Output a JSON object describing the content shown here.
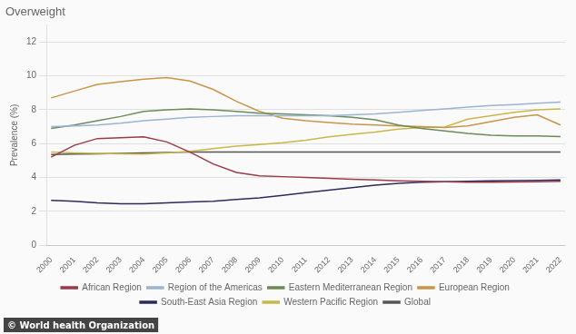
{
  "chart_data": {
    "type": "line",
    "title": "Overweight",
    "y_label": "Prevalence (%)",
    "x": [
      2000,
      2001,
      2002,
      2003,
      2004,
      2005,
      2006,
      2007,
      2008,
      2009,
      2010,
      2011,
      2012,
      2013,
      2014,
      2015,
      2016,
      2017,
      2018,
      2019,
      2020,
      2021,
      2022
    ],
    "series": [
      {
        "name": "African Region",
        "color": "#9B3A4A",
        "values": [
          5.2,
          5.9,
          6.3,
          6.35,
          6.4,
          6.1,
          5.5,
          4.8,
          4.3,
          4.1,
          4.05,
          4.0,
          3.95,
          3.9,
          3.85,
          3.8,
          3.78,
          3.75,
          3.72,
          3.72,
          3.73,
          3.75,
          3.78
        ]
      },
      {
        "name": "Region of the Americas",
        "color": "#9BB5D0",
        "values": [
          7.0,
          7.05,
          7.1,
          7.2,
          7.35,
          7.45,
          7.55,
          7.6,
          7.65,
          7.65,
          7.65,
          7.65,
          7.65,
          7.7,
          7.75,
          7.85,
          7.95,
          8.05,
          8.15,
          8.25,
          8.3,
          8.38,
          8.45
        ]
      },
      {
        "name": "Eastern Mediterranean Region",
        "color": "#6B8B5A",
        "values": [
          6.9,
          7.1,
          7.35,
          7.6,
          7.9,
          8.0,
          8.05,
          8.0,
          7.9,
          7.8,
          7.75,
          7.7,
          7.65,
          7.55,
          7.4,
          7.1,
          6.9,
          6.75,
          6.6,
          6.5,
          6.45,
          6.45,
          6.42
        ]
      },
      {
        "name": "European Region",
        "color": "#C8954A",
        "values": [
          8.7,
          9.1,
          9.5,
          9.65,
          9.8,
          9.9,
          9.7,
          9.2,
          8.5,
          7.9,
          7.5,
          7.35,
          7.25,
          7.15,
          7.1,
          7.05,
          7.0,
          6.95,
          7.05,
          7.3,
          7.55,
          7.7,
          7.1
        ]
      },
      {
        "name": "South-East Asia Region",
        "color": "#2B2B5E",
        "values": [
          2.65,
          2.6,
          2.5,
          2.45,
          2.45,
          2.5,
          2.55,
          2.6,
          2.7,
          2.8,
          2.95,
          3.1,
          3.25,
          3.4,
          3.55,
          3.65,
          3.72,
          3.75,
          3.78,
          3.8,
          3.82,
          3.83,
          3.85
        ]
      },
      {
        "name": "Western Pacific Region",
        "color": "#C8B84A",
        "values": [
          5.5,
          5.45,
          5.42,
          5.4,
          5.38,
          5.45,
          5.55,
          5.7,
          5.85,
          5.95,
          6.05,
          6.2,
          6.4,
          6.55,
          6.68,
          6.85,
          6.95,
          6.98,
          7.45,
          7.65,
          7.85,
          8.0,
          8.05
        ]
      },
      {
        "name": "Global",
        "color": "#555555",
        "values": [
          5.35,
          5.38,
          5.4,
          5.42,
          5.45,
          5.48,
          5.5,
          5.5,
          5.5,
          5.5,
          5.5,
          5.5,
          5.5,
          5.5,
          5.5,
          5.5,
          5.5,
          5.5,
          5.5,
          5.5,
          5.5,
          5.5,
          5.5
        ]
      }
    ],
    "xlim": [
      1999.8,
      2022.2
    ],
    "xticks": [
      2000,
      2001,
      2002,
      2003,
      2004,
      2005,
      2006,
      2007,
      2008,
      2009,
      2010,
      2011,
      2012,
      2013,
      2014,
      2015,
      2016,
      2017,
      2018,
      2019,
      2020,
      2021,
      2022
    ],
    "ylim": [
      0,
      13
    ],
    "yticks": [
      0,
      2,
      4,
      6,
      8,
      10,
      12
    ],
    "grid": "y",
    "legend": "bottom",
    "annotations": [
      "© World health Organization"
    ]
  }
}
